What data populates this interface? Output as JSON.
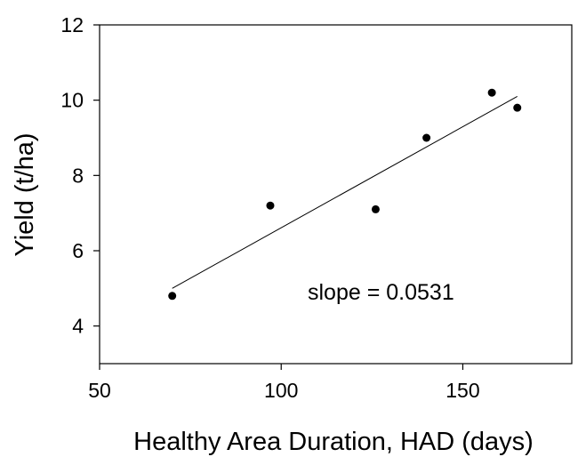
{
  "chart_data": {
    "type": "scatter",
    "title": "",
    "xlabel": "Healthy Area Duration, HAD (days)",
    "ylabel": "Yield (t/ha)",
    "xlim": [
      50,
      180
    ],
    "ylim": [
      3,
      12
    ],
    "x_ticks": [
      50,
      100,
      150
    ],
    "y_ticks": [
      4,
      6,
      8,
      10,
      12
    ],
    "x_tick_labels": [
      "50",
      "100",
      "150"
    ],
    "y_tick_labels": [
      "4",
      "6",
      "8",
      "10",
      "12"
    ],
    "grid": false,
    "series": [
      {
        "x": [
          70,
          97,
          126,
          140,
          158,
          165
        ],
        "y": [
          4.8,
          7.2,
          7.1,
          9.0,
          10.2,
          9.8
        ]
      }
    ],
    "trendline": {
      "x": [
        70,
        165
      ],
      "y": [
        5.0,
        10.1
      ],
      "slope": 0.0531
    },
    "annotation": "slope = 0.0531",
    "colors": {
      "points": "#000000",
      "line": "#000000",
      "background": "#ffffff"
    }
  }
}
